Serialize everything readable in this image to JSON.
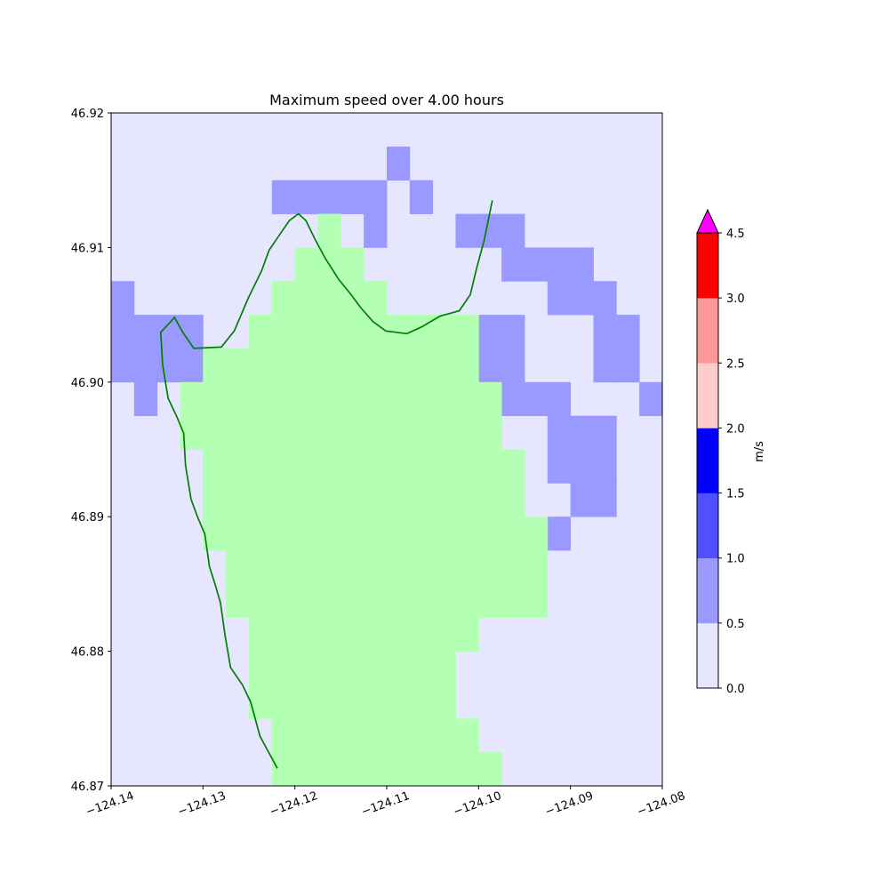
{
  "chart_data": {
    "type": "heatmap",
    "title": "Maximum speed over 4.00 hours",
    "xlabel": "",
    "ylabel": "",
    "xlim": [
      -124.14,
      -124.08
    ],
    "ylim": [
      46.87,
      46.92
    ],
    "x_ticks": [
      "−124.14",
      "−124.13",
      "−124.12",
      "−124.11",
      "−124.10",
      "−124.09",
      "−124.08"
    ],
    "y_ticks": [
      "46.87",
      "46.88",
      "46.89",
      "46.90",
      "46.91",
      "46.92"
    ],
    "grid": false,
    "background_level_color": "#e6e6ff",
    "land_color": "#b3ffb3",
    "coastline_color": "#008000",
    "cell_rows": 20,
    "cell_cols": 24,
    "cells_0_5_to_1_0": [
      [
        1,
        12
      ],
      [
        2,
        7
      ],
      [
        2,
        8
      ],
      [
        2,
        9
      ],
      [
        2,
        10
      ],
      [
        2,
        11
      ],
      [
        2,
        13
      ],
      [
        3,
        11
      ],
      [
        3,
        15
      ],
      [
        3,
        16
      ],
      [
        3,
        17
      ],
      [
        4,
        17
      ],
      [
        4,
        18
      ],
      [
        4,
        19
      ],
      [
        4,
        20
      ],
      [
        5,
        0
      ],
      [
        5,
        19
      ],
      [
        5,
        20
      ],
      [
        5,
        21
      ],
      [
        6,
        0
      ],
      [
        6,
        1
      ],
      [
        6,
        2
      ],
      [
        6,
        3
      ],
      [
        6,
        16
      ],
      [
        6,
        17
      ],
      [
        6,
        21
      ],
      [
        6,
        22
      ],
      [
        7,
        0
      ],
      [
        7,
        1
      ],
      [
        7,
        2
      ],
      [
        7,
        3
      ],
      [
        7,
        16
      ],
      [
        7,
        17
      ],
      [
        7,
        21
      ],
      [
        7,
        22
      ],
      [
        8,
        1
      ],
      [
        8,
        17
      ],
      [
        8,
        18
      ],
      [
        8,
        19
      ],
      [
        8,
        23
      ],
      [
        9,
        19
      ],
      [
        9,
        20
      ],
      [
        9,
        21
      ],
      [
        10,
        19
      ],
      [
        10,
        20
      ],
      [
        10,
        21
      ],
      [
        11,
        20
      ],
      [
        11,
        21
      ],
      [
        12,
        19
      ]
    ],
    "land_cells": [
      [
        3,
        9
      ],
      [
        4,
        8
      ],
      [
        4,
        9
      ],
      [
        4,
        10
      ],
      [
        5,
        7
      ],
      [
        5,
        8
      ],
      [
        5,
        9
      ],
      [
        5,
        10
      ],
      [
        5,
        11
      ],
      [
        6,
        6
      ],
      [
        6,
        7
      ],
      [
        6,
        8
      ],
      [
        6,
        9
      ],
      [
        6,
        10
      ],
      [
        6,
        11
      ],
      [
        6,
        12
      ],
      [
        6,
        13
      ],
      [
        6,
        14
      ],
      [
        6,
        15
      ],
      [
        7,
        4
      ],
      [
        7,
        5
      ],
      [
        7,
        6
      ],
      [
        7,
        7
      ],
      [
        7,
        8
      ],
      [
        7,
        9
      ],
      [
        7,
        10
      ],
      [
        7,
        11
      ],
      [
        7,
        12
      ],
      [
        7,
        13
      ],
      [
        7,
        14
      ],
      [
        7,
        15
      ],
      [
        8,
        3
      ],
      [
        8,
        4
      ],
      [
        8,
        5
      ],
      [
        8,
        6
      ],
      [
        8,
        7
      ],
      [
        8,
        8
      ],
      [
        8,
        9
      ],
      [
        8,
        10
      ],
      [
        8,
        11
      ],
      [
        8,
        12
      ],
      [
        8,
        13
      ],
      [
        8,
        14
      ],
      [
        8,
        15
      ],
      [
        8,
        16
      ],
      [
        9,
        3
      ],
      [
        9,
        4
      ],
      [
        9,
        5
      ],
      [
        9,
        6
      ],
      [
        9,
        7
      ],
      [
        9,
        8
      ],
      [
        9,
        9
      ],
      [
        9,
        10
      ],
      [
        9,
        11
      ],
      [
        9,
        12
      ],
      [
        9,
        13
      ],
      [
        9,
        14
      ],
      [
        9,
        15
      ],
      [
        9,
        16
      ],
      [
        10,
        4
      ],
      [
        10,
        5
      ],
      [
        10,
        6
      ],
      [
        10,
        7
      ],
      [
        10,
        8
      ],
      [
        10,
        9
      ],
      [
        10,
        10
      ],
      [
        10,
        11
      ],
      [
        10,
        12
      ],
      [
        10,
        13
      ],
      [
        10,
        14
      ],
      [
        10,
        15
      ],
      [
        10,
        16
      ],
      [
        10,
        17
      ],
      [
        11,
        4
      ],
      [
        11,
        5
      ],
      [
        11,
        6
      ],
      [
        11,
        7
      ],
      [
        11,
        8
      ],
      [
        11,
        9
      ],
      [
        11,
        10
      ],
      [
        11,
        11
      ],
      [
        11,
        12
      ],
      [
        11,
        13
      ],
      [
        11,
        14
      ],
      [
        11,
        15
      ],
      [
        11,
        16
      ],
      [
        11,
        17
      ],
      [
        12,
        4
      ],
      [
        12,
        5
      ],
      [
        12,
        6
      ],
      [
        12,
        7
      ],
      [
        12,
        8
      ],
      [
        12,
        9
      ],
      [
        12,
        10
      ],
      [
        12,
        11
      ],
      [
        12,
        12
      ],
      [
        12,
        13
      ],
      [
        12,
        14
      ],
      [
        12,
        15
      ],
      [
        12,
        16
      ],
      [
        12,
        17
      ],
      [
        12,
        18
      ],
      [
        13,
        5
      ],
      [
        13,
        6
      ],
      [
        13,
        7
      ],
      [
        13,
        8
      ],
      [
        13,
        9
      ],
      [
        13,
        10
      ],
      [
        13,
        11
      ],
      [
        13,
        12
      ],
      [
        13,
        13
      ],
      [
        13,
        14
      ],
      [
        13,
        15
      ],
      [
        13,
        16
      ],
      [
        13,
        17
      ],
      [
        13,
        18
      ],
      [
        14,
        5
      ],
      [
        14,
        6
      ],
      [
        14,
        7
      ],
      [
        14,
        8
      ],
      [
        14,
        9
      ],
      [
        14,
        10
      ],
      [
        14,
        11
      ],
      [
        14,
        12
      ],
      [
        14,
        13
      ],
      [
        14,
        14
      ],
      [
        14,
        15
      ],
      [
        14,
        16
      ],
      [
        14,
        17
      ],
      [
        14,
        18
      ],
      [
        15,
        6
      ],
      [
        15,
        7
      ],
      [
        15,
        8
      ],
      [
        15,
        9
      ],
      [
        15,
        10
      ],
      [
        15,
        11
      ],
      [
        15,
        12
      ],
      [
        15,
        13
      ],
      [
        15,
        14
      ],
      [
        15,
        15
      ],
      [
        16,
        6
      ],
      [
        16,
        7
      ],
      [
        16,
        8
      ],
      [
        16,
        9
      ],
      [
        16,
        10
      ],
      [
        16,
        11
      ],
      [
        16,
        12
      ],
      [
        16,
        13
      ],
      [
        16,
        14
      ],
      [
        17,
        6
      ],
      [
        17,
        7
      ],
      [
        17,
        8
      ],
      [
        17,
        9
      ],
      [
        17,
        10
      ],
      [
        17,
        11
      ],
      [
        17,
        12
      ],
      [
        17,
        13
      ],
      [
        17,
        14
      ],
      [
        18,
        7
      ],
      [
        18,
        8
      ],
      [
        18,
        9
      ],
      [
        18,
        10
      ],
      [
        18,
        11
      ],
      [
        18,
        12
      ],
      [
        18,
        13
      ],
      [
        18,
        14
      ],
      [
        18,
        15
      ],
      [
        19,
        7
      ],
      [
        19,
        8
      ],
      [
        19,
        9
      ],
      [
        19,
        10
      ],
      [
        19,
        11
      ],
      [
        19,
        12
      ],
      [
        19,
        13
      ],
      [
        19,
        14
      ],
      [
        19,
        15
      ],
      [
        19,
        16
      ]
    ],
    "coastline": [
      [
        -124.1219,
        46.8713
      ],
      [
        -124.1238,
        46.8737
      ],
      [
        -124.1248,
        46.8762
      ],
      [
        -124.1257,
        46.8775
      ],
      [
        -124.127,
        46.8788
      ],
      [
        -124.1276,
        46.8812
      ],
      [
        -124.1281,
        46.8836
      ],
      [
        -124.1287,
        46.885
      ],
      [
        -124.1293,
        46.8863
      ],
      [
        -124.1298,
        46.8887
      ],
      [
        -124.1306,
        46.89
      ],
      [
        -124.1313,
        46.8913
      ],
      [
        -124.1319,
        46.8938
      ],
      [
        -124.1321,
        46.8962
      ],
      [
        -124.1329,
        46.8975
      ],
      [
        -124.1338,
        46.8988
      ],
      [
        -124.1344,
        46.9013
      ],
      [
        -124.1346,
        46.9037
      ],
      [
        -124.1331,
        46.9048
      ],
      [
        -124.1322,
        46.9037
      ],
      [
        -124.131,
        46.9025
      ],
      [
        -124.128,
        46.9026
      ],
      [
        -124.1266,
        46.9038
      ],
      [
        -124.1251,
        46.9062
      ],
      [
        -124.1236,
        46.9083
      ],
      [
        -124.1228,
        46.9098
      ],
      [
        -124.1213,
        46.9113
      ],
      [
        -124.1206,
        46.912
      ],
      [
        -124.1196,
        46.9125
      ],
      [
        -124.1188,
        46.912
      ],
      [
        -124.1178,
        46.9106
      ],
      [
        -124.1167,
        46.9092
      ],
      [
        -124.1152,
        46.9076
      ],
      [
        -124.114,
        46.9066
      ],
      [
        -124.1128,
        46.9055
      ],
      [
        -124.1115,
        46.9045
      ],
      [
        -124.1101,
        46.9038
      ],
      [
        -124.1078,
        46.9036
      ],
      [
        -124.1062,
        46.9041
      ],
      [
        -124.1042,
        46.9049
      ],
      [
        -124.1021,
        46.9053
      ],
      [
        -124.1009,
        46.9065
      ],
      [
        -124.1002,
        46.9085
      ],
      [
        -124.0994,
        46.9105
      ],
      [
        -124.0985,
        46.9135
      ]
    ],
    "colorbar": {
      "label": "m/s",
      "ticks": [
        "0.0",
        "0.5",
        "1.0",
        "1.5",
        "2.0",
        "2.5",
        "3.0",
        "4.5"
      ],
      "levels": [
        {
          "from": 0.0,
          "to": 0.5,
          "color": "#e6e6ff"
        },
        {
          "from": 0.5,
          "to": 1.0,
          "color": "#9999ff"
        },
        {
          "from": 1.0,
          "to": 1.5,
          "color": "#5050ff"
        },
        {
          "from": 1.5,
          "to": 2.0,
          "color": "#0000ff"
        },
        {
          "from": 2.0,
          "to": 2.5,
          "color": "#ffcccc"
        },
        {
          "from": 2.5,
          "to": 3.0,
          "color": "#ff9999"
        },
        {
          "from": 3.0,
          "to": 4.5,
          "color": "#ff0000"
        }
      ],
      "extend_color": "#ff00ff"
    }
  }
}
